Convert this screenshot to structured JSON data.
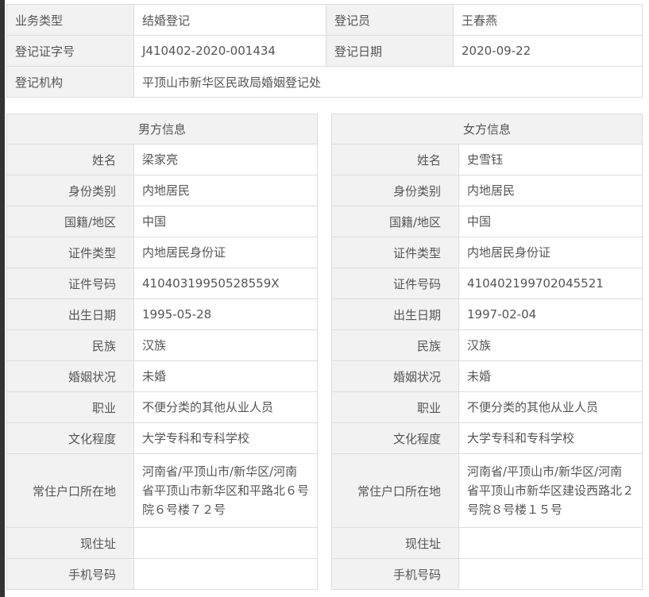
{
  "summary": {
    "rows": [
      [
        {
          "label": "业务类型",
          "value": "结婚登记"
        },
        {
          "label": "登记员",
          "value": "王春燕"
        }
      ],
      [
        {
          "label": "登记证字号",
          "value": "J410402-2020-001434"
        },
        {
          "label": "登记日期",
          "value": "2020-09-22"
        }
      ]
    ],
    "org_label": "登记机构",
    "org_value": "平顶山市新华区民政局婚姻登记处"
  },
  "male": {
    "title": "男方信息",
    "fields": [
      {
        "label": "姓名",
        "value": "梁家亮"
      },
      {
        "label": "身份类别",
        "value": "内地居民"
      },
      {
        "label": "国籍/地区",
        "value": "中国"
      },
      {
        "label": "证件类型",
        "value": "内地居民身份证"
      },
      {
        "label": "证件号码",
        "value": "41040319950528559X"
      },
      {
        "label": "出生日期",
        "value": "1995-05-28"
      },
      {
        "label": "民族",
        "value": "汉族"
      },
      {
        "label": "婚姻状况",
        "value": "未婚"
      },
      {
        "label": "职业",
        "value": "不便分类的其他从业人员"
      },
      {
        "label": "文化程度",
        "value": "大学专科和专科学校"
      },
      {
        "label": "常住户口所在地",
        "value": "河南省/平顶山市/新华区/河南省平顶山市新华区和平路北６号院６号楼７２号"
      },
      {
        "label": "现住址",
        "value": ""
      },
      {
        "label": "手机号码",
        "value": ""
      }
    ]
  },
  "female": {
    "title": "女方信息",
    "fields": [
      {
        "label": "姓名",
        "value": "史雪钰"
      },
      {
        "label": "身份类别",
        "value": "内地居民"
      },
      {
        "label": "国籍/地区",
        "value": "中国"
      },
      {
        "label": "证件类型",
        "value": "内地居民身份证"
      },
      {
        "label": "证件号码",
        "value": "410402199702045521"
      },
      {
        "label": "出生日期",
        "value": "1997-02-04"
      },
      {
        "label": "民族",
        "value": "汉族"
      },
      {
        "label": "婚姻状况",
        "value": "未婚"
      },
      {
        "label": "职业",
        "value": "不便分类的其他从业人员"
      },
      {
        "label": "文化程度",
        "value": "大学专科和专科学校"
      },
      {
        "label": "常住户口所在地",
        "value": "河南省/平顶山市/新华区/河南省平顶山市新华区建设西路北２号院８号楼１５号"
      },
      {
        "label": "现住址",
        "value": ""
      },
      {
        "label": "手机号码",
        "value": ""
      }
    ]
  }
}
